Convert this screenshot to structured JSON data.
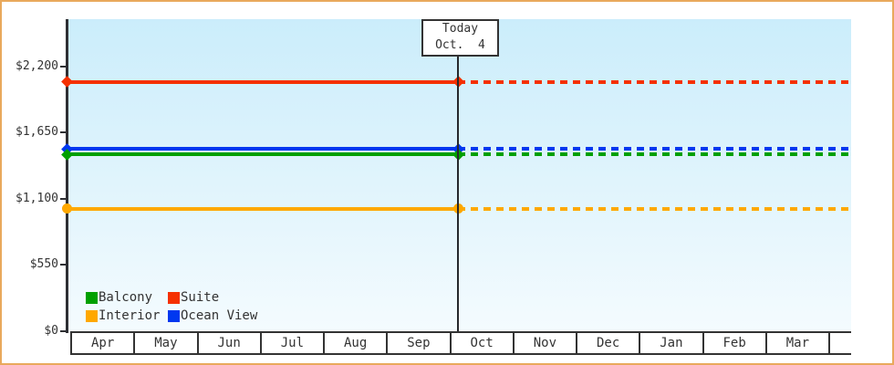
{
  "window": {
    "border_color": "#E9A95C",
    "background_color": "#FFFFFF",
    "plot_gradient_top": "#CBEDFB",
    "plot_gradient_bottom": "#F4FBFE",
    "axis_color": "#2E2F33",
    "text_color": "#333333"
  },
  "today_marker": {
    "line1": "Today",
    "line2": "Oct.  4"
  },
  "chart_data": {
    "type": "line",
    "title": "",
    "xlabel": "",
    "ylabel": "",
    "categories": [
      "Apr",
      "May",
      "Jun",
      "Jul",
      "Aug",
      "Sep",
      "Oct",
      "Nov",
      "Dec",
      "Jan",
      "Feb",
      "Mar"
    ],
    "ylim": [
      0,
      2200
    ],
    "yticks": [
      {
        "value": 0,
        "label": "$0"
      },
      {
        "value": 550,
        "label": "$550"
      },
      {
        "value": 1100,
        "label": "$1,100"
      },
      {
        "value": 1650,
        "label": "$1,650"
      },
      {
        "value": 2200,
        "label": "$2,200"
      }
    ],
    "grid": false,
    "today": {
      "month_index": 6,
      "month_fraction": 0.13,
      "label": "Today Oct. 4"
    },
    "line_style_note": "solid before today, dashed after today; flat constant prices",
    "series": [
      {
        "name": "Suite",
        "color": "#F53000",
        "value": 2070,
        "marker": "diamond"
      },
      {
        "name": "Ocean View",
        "color": "#0038F0",
        "value": 1510,
        "marker": "diamond"
      },
      {
        "name": "Balcony",
        "color": "#00A000",
        "value": 1465,
        "marker": "diamond"
      },
      {
        "name": "Interior",
        "color": "#FFA800",
        "value": 1015,
        "marker": "circle"
      }
    ],
    "legend": {
      "position": "bottom-left",
      "rows": [
        [
          "Balcony",
          "Suite"
        ],
        [
          "Interior",
          "Ocean View"
        ]
      ]
    }
  }
}
